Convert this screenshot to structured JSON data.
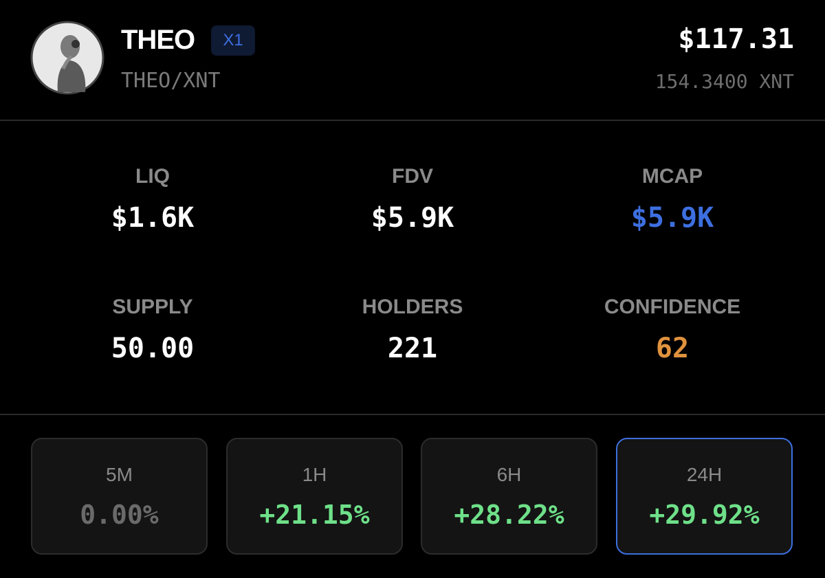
{
  "header": {
    "name": "THEO",
    "badge": "X1",
    "pair": "THEO/XNT",
    "price": "$117.31",
    "price_native": "154.3400 XNT"
  },
  "stats": [
    {
      "label": "LIQ",
      "value": "$1.6K"
    },
    {
      "label": "FDV",
      "value": "$5.9K"
    },
    {
      "label": "MCAP",
      "value": "$5.9K"
    },
    {
      "label": "SUPPLY",
      "value": "50.00"
    },
    {
      "label": "HOLDERS",
      "value": "221"
    },
    {
      "label": "CONFIDENCE",
      "value": "62"
    }
  ],
  "changes": [
    {
      "label": "5M",
      "value": "0.00%"
    },
    {
      "label": "1H",
      "value": "+21.15%"
    },
    {
      "label": "6H",
      "value": "+28.22%"
    },
    {
      "label": "24H",
      "value": "+29.92%"
    }
  ]
}
